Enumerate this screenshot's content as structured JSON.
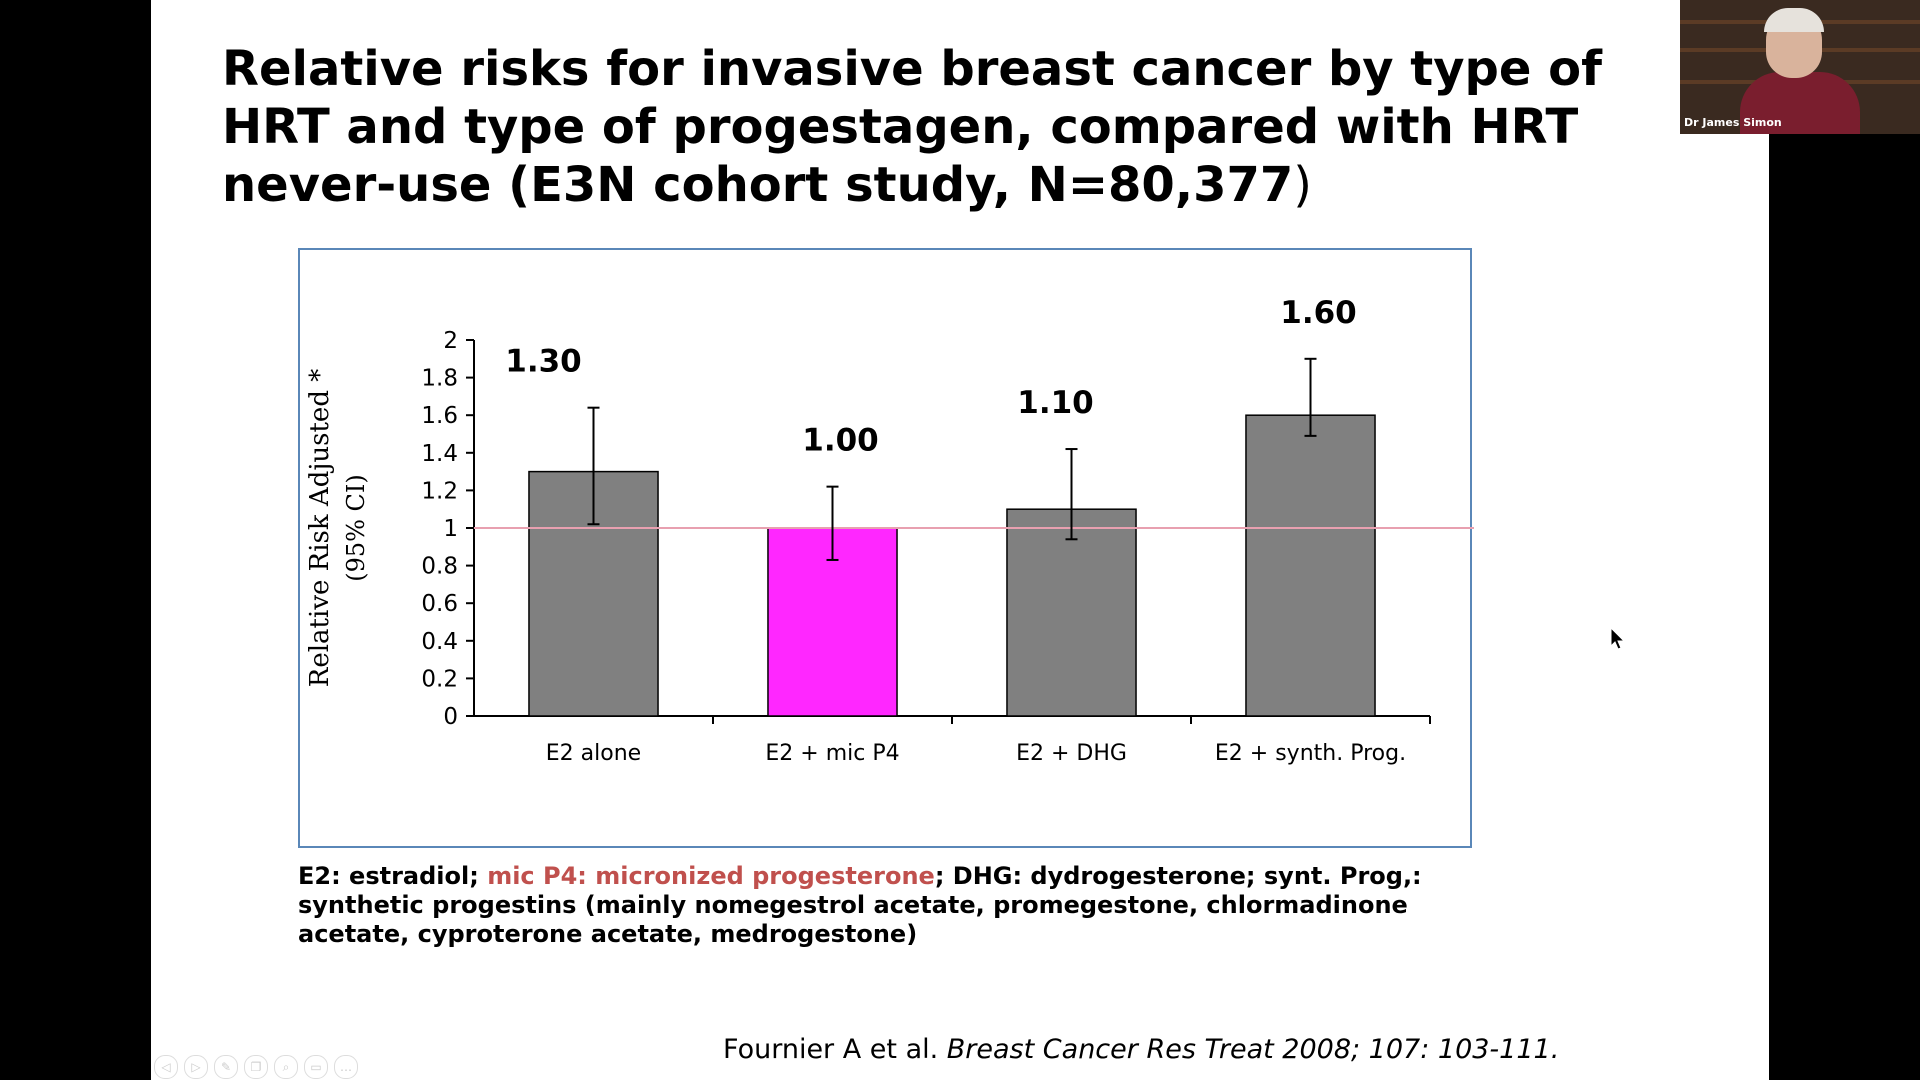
{
  "slide": {
    "title_main": "Relative risks for invasive breast cancer by type of HRT and type of progestagen, compared with HRT never-use (E3N cohort study, N=80,377",
    "title_paren": ")",
    "legend": {
      "part1": "E2: estradiol; ",
      "part2_highlight": "mic P4: micronized progesterone",
      "part3": "; DHG: dydrogesterone;  synt. Prog,: synthetic progestins (mainly nomegestrol acetate, promegestone, chlormadinone acetate, cyproterone acetate, medrogestone)"
    },
    "citation": {
      "authors": "Fournier A et al. ",
      "journal": "Breast Cancer Res Treat 2008; 107: 103-111."
    }
  },
  "webcam": {
    "name": "Dr James Simon"
  },
  "toolbar": {
    "icons": [
      "prev-icon",
      "next-icon",
      "pen-icon",
      "pages-icon",
      "zoom-icon",
      "subtitles-icon",
      "more-icon"
    ]
  },
  "colors": {
    "accent": "#ff27ff",
    "bar": "#808080",
    "reference_line": "#e8a0b0",
    "frame": "#5a87b8",
    "highlight_text": "#c0504d"
  },
  "chart_data": {
    "type": "bar",
    "ylabel_line1": "Relative Risk Adjusted *",
    "ylabel_line2": "(95% CI)",
    "ylim": [
      0,
      2
    ],
    "yticks": [
      "0",
      "0.2",
      "0.4",
      "0.6",
      "0.8",
      "1",
      "1.2",
      "1.4",
      "1.6",
      "1.8",
      "2"
    ],
    "categories": [
      "E2 alone",
      "E2 + mic P4",
      "E2 + DHG",
      "E2 + synth. Prog."
    ],
    "values": [
      1.3,
      1.0,
      1.1,
      1.6
    ],
    "value_labels": [
      "1.30",
      "1.00",
      "1.10",
      "1.60"
    ],
    "ci_low": [
      1.02,
      0.83,
      0.94,
      1.49
    ],
    "ci_high": [
      1.64,
      1.22,
      1.42,
      1.9
    ],
    "reference_line": 1,
    "highlighted_index": 1
  }
}
